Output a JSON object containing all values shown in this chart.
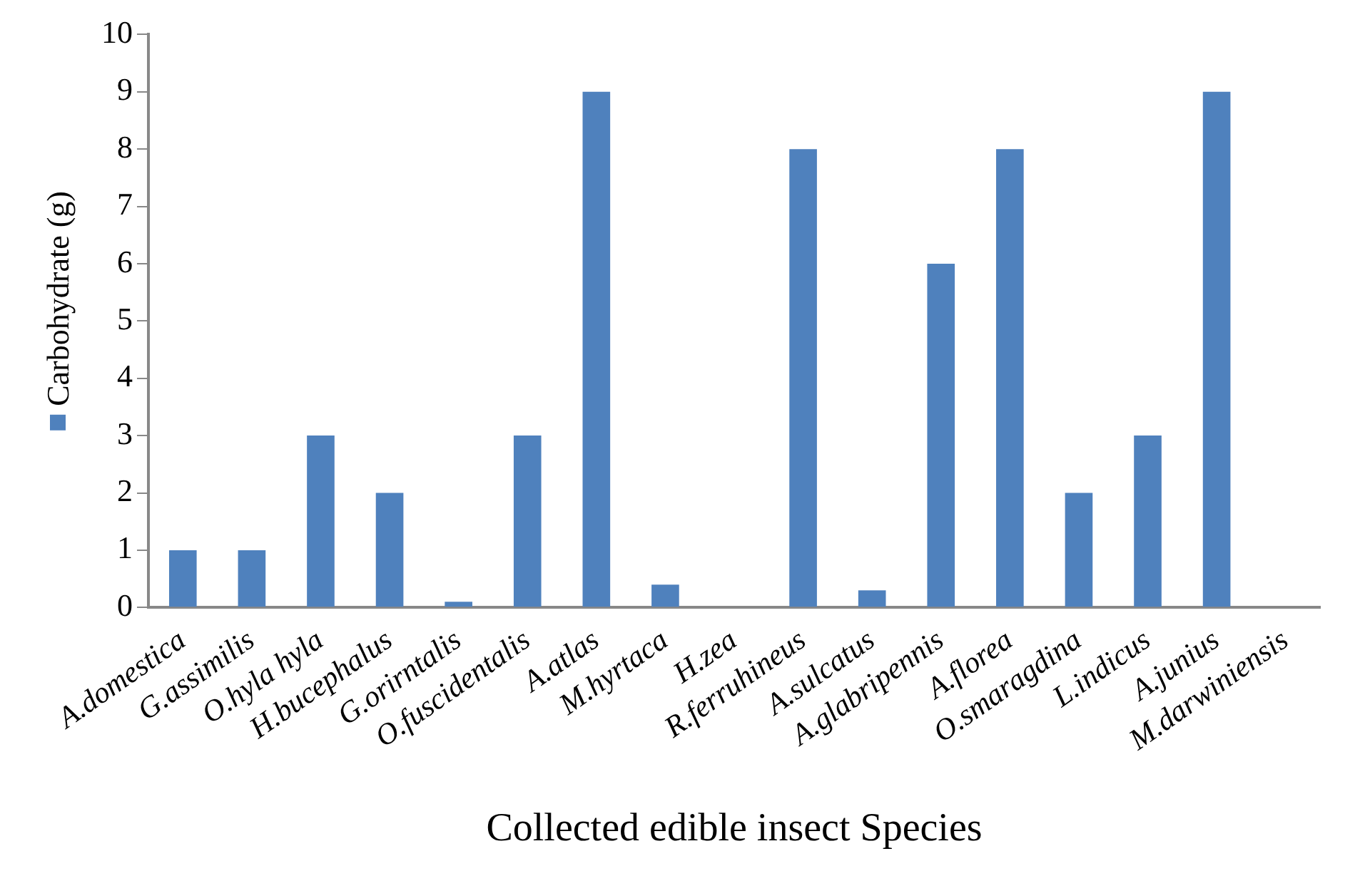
{
  "chart_data": {
    "type": "bar",
    "xlabel": "Collected edible insect Species",
    "categories": [
      "A.domestica",
      "G.assimilis",
      "O.hyla hyla",
      "H.bucephalus",
      "G.orirntalis",
      "O.fuscidentalis",
      "A.atlas",
      "M.hyrtaca",
      "H.zea",
      "R.ferruhineus",
      "A.sulcatus",
      "A.glabripennis",
      "A.florea",
      "O.smaragdina",
      "L.indicus",
      "A.junius",
      "M.darwiniensis"
    ],
    "series": [
      {
        "name": "Carbohydrate (g)",
        "color": "#4f81bd",
        "values": [
          1,
          1,
          3,
          2,
          0.1,
          3,
          9,
          0.4,
          0,
          8,
          0.3,
          6,
          8,
          2,
          3,
          9,
          0
        ]
      }
    ],
    "ylim": [
      0,
      10
    ],
    "yticks": [
      0,
      1,
      2,
      3,
      4,
      5,
      6,
      7,
      8,
      9,
      10
    ],
    "grid": false,
    "legend": "left"
  }
}
